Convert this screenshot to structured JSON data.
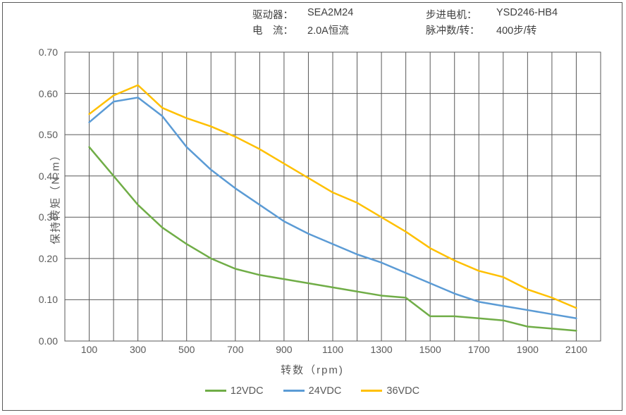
{
  "header": {
    "driver_label": "驱动器：",
    "driver_value": "SEA2M24",
    "motor_label": "步进电机：",
    "motor_value": "YSD246-HB4",
    "current_label": "电　流：",
    "current_value": "2.0A恒流",
    "pulse_label": "脉冲数/转：",
    "pulse_value": "400步/转"
  },
  "chart": {
    "type": "line",
    "x_label": "转数（rpm)",
    "y_label": "保持转矩（N.m）",
    "x_ticks": [
      100,
      300,
      500,
      700,
      900,
      1100,
      1300,
      1500,
      1700,
      1900,
      2100
    ],
    "y_ticks": [
      "0.00",
      "0.10",
      "0.20",
      "0.30",
      "0.40",
      "0.50",
      "0.60",
      "0.70"
    ],
    "xlim": [
      0,
      2200
    ],
    "ylim": [
      0.0,
      0.7
    ],
    "grid_color": "#595959",
    "grid_width": 1,
    "axis_color": "#595959",
    "background_color": "#ffffff",
    "tick_fontsize": 14,
    "label_fontsize": 15,
    "line_width": 2.5,
    "series": [
      {
        "name": "12VDC",
        "color": "#70AD47",
        "x": [
          100,
          200,
          300,
          400,
          500,
          600,
          700,
          800,
          900,
          1000,
          1100,
          1200,
          1300,
          1400,
          1500,
          1600,
          1700,
          1800,
          1900,
          2000,
          2100
        ],
        "y": [
          0.47,
          0.4,
          0.33,
          0.275,
          0.235,
          0.2,
          0.175,
          0.16,
          0.15,
          0.14,
          0.13,
          0.12,
          0.11,
          0.105,
          0.06,
          0.06,
          0.055,
          0.05,
          0.035,
          0.03,
          0.025
        ]
      },
      {
        "name": "24VDC",
        "color": "#5B9BD5",
        "x": [
          100,
          200,
          300,
          400,
          500,
          600,
          700,
          800,
          900,
          1000,
          1100,
          1200,
          1300,
          1400,
          1500,
          1600,
          1700,
          1800,
          1900,
          2000,
          2100
        ],
        "y": [
          0.53,
          0.58,
          0.59,
          0.545,
          0.47,
          0.415,
          0.37,
          0.33,
          0.29,
          0.26,
          0.235,
          0.21,
          0.19,
          0.165,
          0.14,
          0.115,
          0.095,
          0.085,
          0.075,
          0.065,
          0.055
        ]
      },
      {
        "name": "36VDC",
        "color": "#FFC000",
        "x": [
          100,
          200,
          300,
          400,
          500,
          600,
          700,
          800,
          900,
          1000,
          1100,
          1200,
          1300,
          1400,
          1500,
          1600,
          1700,
          1800,
          1900,
          2000,
          2100
        ],
        "y": [
          0.55,
          0.595,
          0.62,
          0.565,
          0.54,
          0.52,
          0.495,
          0.465,
          0.43,
          0.395,
          0.36,
          0.335,
          0.3,
          0.265,
          0.225,
          0.195,
          0.17,
          0.155,
          0.125,
          0.105,
          0.08
        ]
      }
    ],
    "legend_position": "bottom"
  }
}
